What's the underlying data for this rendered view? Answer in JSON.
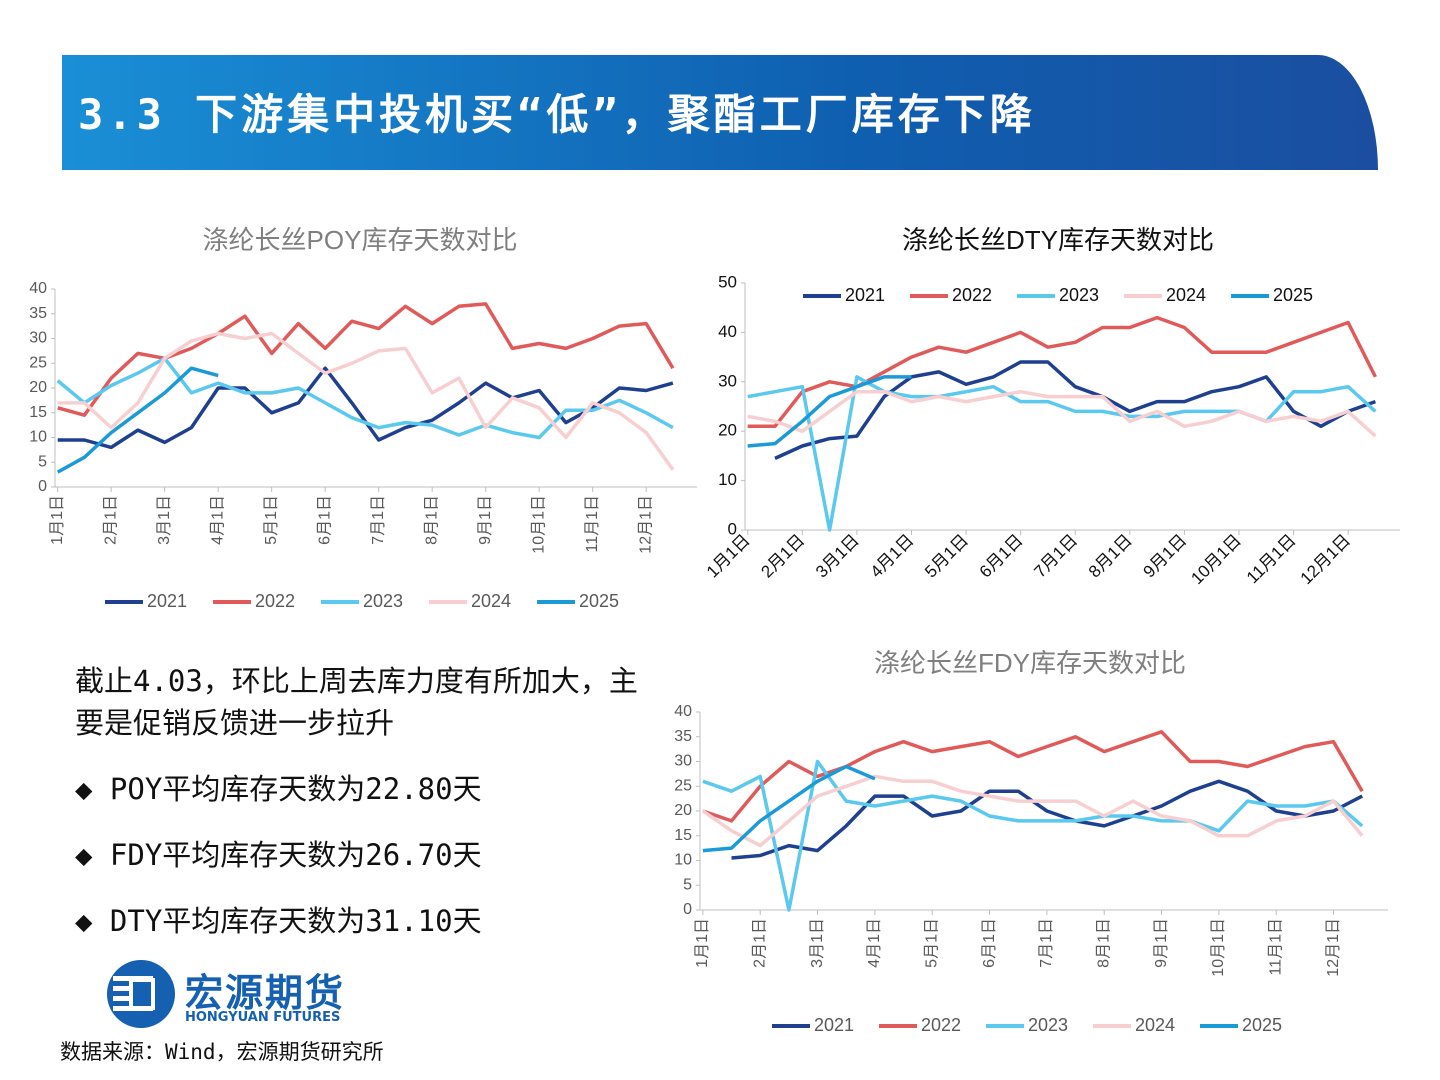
{
  "header": {
    "title": "3.3 下游集中投机买“低”，聚酯工厂库存下降"
  },
  "chart_data": [
    {
      "type": "line",
      "title": "涤纶长丝POY库存天数对比",
      "title_color": "#7f7f7f",
      "legend": "bottom",
      "categories": [
        "1月1日",
        null,
        "2月1日",
        null,
        "3月1日",
        null,
        "4月1日",
        null,
        "5月1日",
        null,
        "6月1日",
        null,
        "7月1日",
        null,
        "8月1日",
        null,
        "9月1日",
        null,
        "10月1日",
        null,
        "11月1日",
        null,
        "12月1日",
        null
      ],
      "ylim": [
        0,
        40
      ],
      "yticks": [
        0,
        5,
        10,
        15,
        20,
        25,
        30,
        35,
        40
      ],
      "series": [
        {
          "name": "2021",
          "color": "#1f3f8f",
          "values": [
            9.5,
            9.5,
            8,
            11.5,
            9,
            12,
            20,
            20,
            15,
            17,
            24,
            17,
            9.5,
            12,
            13.5,
            17,
            21,
            18,
            19.5,
            13,
            16,
            20,
            19.5,
            21
          ]
        },
        {
          "name": "2022",
          "color": "#e05a5a",
          "values": [
            16,
            14.5,
            22,
            27,
            26,
            28,
            31,
            34.5,
            27,
            33,
            28,
            33.5,
            32,
            36.5,
            33,
            36.5,
            37,
            28,
            29,
            28,
            30,
            32.5,
            33,
            24
          ]
        },
        {
          "name": "2023",
          "color": "#5bc8ee",
          "values": [
            21.5,
            17,
            20.5,
            23,
            26,
            19,
            21,
            19,
            19,
            20,
            17,
            14,
            12,
            13,
            12.5,
            10.5,
            12.5,
            11,
            10,
            15.5,
            15.5,
            17.5,
            15,
            12
          ]
        },
        {
          "name": "2024",
          "color": "#f7cfd0",
          "values": [
            17,
            17,
            12,
            17,
            26,
            29.5,
            31,
            30,
            31,
            27,
            23,
            25,
            27.5,
            28,
            19,
            22,
            12,
            18,
            16,
            10,
            17,
            15,
            11,
            3.5
          ]
        },
        {
          "name": "2025",
          "color": "#1a9ad6",
          "values": [
            3,
            6,
            11,
            15,
            19,
            24,
            22.5,
            null,
            null,
            null,
            null,
            null,
            null,
            null,
            null,
            null,
            null,
            null,
            null,
            null,
            null,
            null,
            null,
            null
          ]
        }
      ]
    },
    {
      "type": "line",
      "title": "涤纶长丝DTY库存天数对比",
      "title_color": "#111111",
      "legend": "top",
      "categories": [
        "1月1日",
        null,
        "2月1日",
        null,
        "3月1日",
        null,
        "4月1日",
        null,
        "5月1日",
        null,
        "6月1日",
        null,
        "7月1日",
        null,
        "8月1日",
        null,
        "9月1日",
        null,
        "10月1日",
        null,
        "11月1日",
        null,
        "12月1日",
        null
      ],
      "ylim": [
        0,
        50
      ],
      "yticks": [
        0,
        10,
        20,
        30,
        40,
        50
      ],
      "series": [
        {
          "name": "2021",
          "color": "#1f3f8f",
          "values": [
            null,
            14.5,
            17,
            18.5,
            19,
            27,
            31,
            32,
            29.5,
            31,
            34,
            34,
            29,
            27,
            24,
            26,
            26,
            28,
            29,
            31,
            24,
            21,
            24,
            26
          ]
        },
        {
          "name": "2022",
          "color": "#e05a5a",
          "values": [
            21,
            21,
            28,
            30,
            29,
            32,
            35,
            37,
            36,
            38,
            40,
            37,
            38,
            41,
            41,
            43,
            41,
            36,
            36,
            36,
            38,
            40,
            42,
            31
          ]
        },
        {
          "name": "2023",
          "color": "#5bc8ee",
          "values": [
            27,
            28,
            29,
            0,
            31,
            28,
            27,
            27,
            28,
            29,
            26,
            26,
            24,
            24,
            23,
            23,
            24,
            24,
            24,
            22,
            28,
            28,
            29,
            24
          ]
        },
        {
          "name": "2024",
          "color": "#f7cfd0",
          "values": [
            23,
            22,
            20,
            24,
            28,
            28,
            26,
            27,
            26,
            27,
            28,
            27,
            27,
            27,
            22,
            24,
            21,
            22,
            24,
            22,
            23,
            22,
            24,
            19
          ]
        },
        {
          "name": "2025",
          "color": "#1a9ad6",
          "values": [
            17,
            17.5,
            22,
            27,
            29,
            31,
            31,
            null,
            null,
            null,
            null,
            null,
            null,
            null,
            null,
            null,
            null,
            null,
            null,
            null,
            null,
            null,
            null,
            null
          ]
        }
      ]
    },
    {
      "type": "line",
      "title": "涤纶长丝FDY库存天数对比",
      "title_color": "#7f7f7f",
      "legend": "bottom",
      "categories": [
        "1月1日",
        null,
        "2月1日",
        null,
        "3月1日",
        null,
        "4月1日",
        null,
        "5月1日",
        null,
        "6月1日",
        null,
        "7月1日",
        null,
        "8月1日",
        null,
        "9月1日",
        null,
        "10月1日",
        null,
        "11月1日",
        null,
        "12月1日",
        null
      ],
      "ylim": [
        0,
        40
      ],
      "yticks": [
        0,
        5,
        10,
        15,
        20,
        25,
        30,
        35,
        40
      ],
      "series": [
        {
          "name": "2021",
          "color": "#1f3f8f",
          "values": [
            null,
            10.5,
            11,
            13,
            12,
            17,
            23,
            23,
            19,
            20,
            24,
            24,
            20,
            18,
            17,
            19,
            21,
            24,
            26,
            24,
            20,
            19,
            20,
            23
          ]
        },
        {
          "name": "2022",
          "color": "#e05a5a",
          "values": [
            20,
            18,
            25,
            30,
            27,
            29,
            32,
            34,
            32,
            33,
            34,
            31,
            33,
            35,
            32,
            34,
            36,
            30,
            30,
            29,
            31,
            33,
            34,
            24
          ]
        },
        {
          "name": "2023",
          "color": "#5bc8ee",
          "values": [
            26,
            24,
            27,
            0,
            30,
            22,
            21,
            22,
            23,
            22,
            19,
            18,
            18,
            18,
            19,
            19,
            18,
            18,
            16,
            22,
            21,
            21,
            22,
            17
          ]
        },
        {
          "name": "2024",
          "color": "#f7cfd0",
          "values": [
            20,
            16,
            13,
            18,
            23,
            25,
            27,
            26,
            26,
            24,
            23,
            22,
            22,
            22,
            19,
            22,
            19,
            18,
            15,
            15,
            18,
            19,
            22,
            15
          ]
        },
        {
          "name": "2025",
          "color": "#1a9ad6",
          "values": [
            12,
            12.5,
            18,
            22,
            26,
            29,
            26.5,
            null,
            null,
            null,
            null,
            null,
            null,
            null,
            null,
            null,
            null,
            null,
            null,
            null,
            null,
            null,
            null,
            null
          ]
        }
      ]
    }
  ],
  "notes": {
    "intro": "截止4.03，环比上周去库力度有所加大，主要是促销反馈进一步拉升",
    "bullets": [
      "◆ POY平均库存天数为22.80天",
      "◆ FDY平均库存天数为26.70天",
      "◆ DTY平均库存天数为31.10天"
    ]
  },
  "logo": {
    "name": "宏源期货",
    "english": "HONGYUAN FUTURES"
  },
  "source": "数据来源：Wind，宏源期货研究所"
}
